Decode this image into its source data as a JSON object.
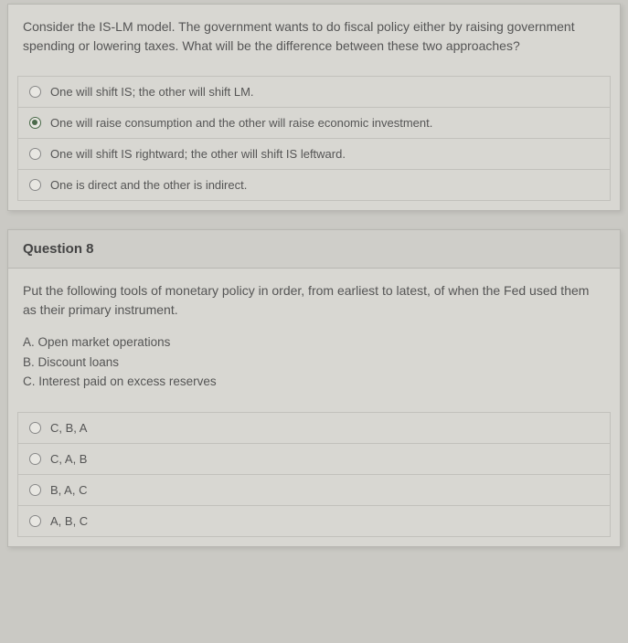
{
  "q1": {
    "prompt": "Consider the IS-LM model. The government wants to do fiscal policy either by raising government spending or lowering taxes. What will be the difference between these two approaches?",
    "options": [
      {
        "label": "One will shift IS; the other will shift LM.",
        "selected": false
      },
      {
        "label": "One will raise consumption and the other will raise economic investment.",
        "selected": true
      },
      {
        "label": "One will shift IS rightward; the other will shift IS leftward.",
        "selected": false
      },
      {
        "label": "One is direct and the other is indirect.",
        "selected": false
      }
    ]
  },
  "q2": {
    "header": "Question 8",
    "prompt": "Put the following tools of monetary policy in order, from earliest to latest, of when the Fed used them as their primary instrument.",
    "items": [
      "A. Open market operations",
      "B. Discount loans",
      "C. Interest paid on excess reserves"
    ],
    "options": [
      {
        "label": "C, B, A",
        "selected": false
      },
      {
        "label": "C, A, B",
        "selected": false
      },
      {
        "label": "B, A, C",
        "selected": false
      },
      {
        "label": "A, B, C",
        "selected": false
      }
    ]
  }
}
